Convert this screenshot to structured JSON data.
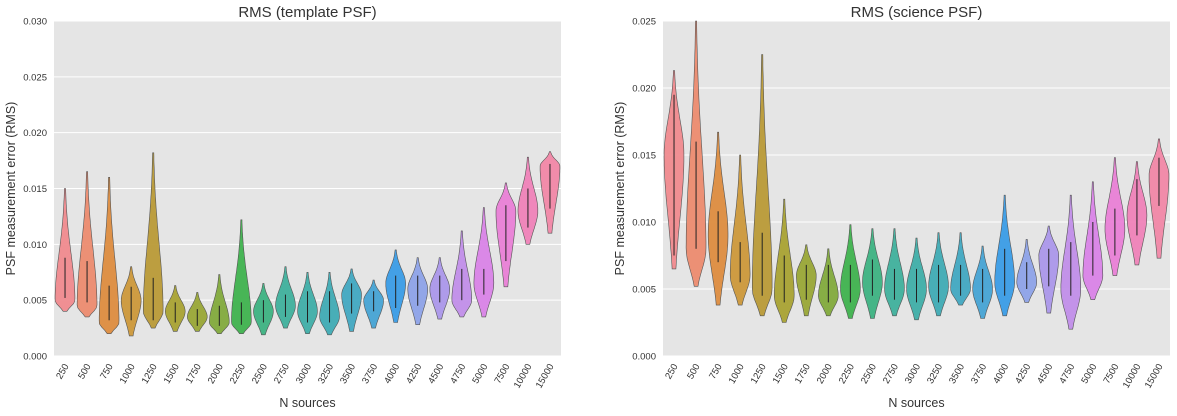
{
  "chart_data": [
    {
      "type": "violin",
      "title": "RMS (template PSF)",
      "xlabel": "N sources",
      "ylabel": "PSF measurement error (RMS)",
      "ylim": [
        0,
        0.03
      ],
      "yticks": [
        "0.000",
        "0.005",
        "0.010",
        "0.015",
        "0.020",
        "0.025",
        "0.030"
      ],
      "grid": true,
      "categories": [
        "250",
        "500",
        "750",
        "1000",
        "1250",
        "1500",
        "1750",
        "2000",
        "2250",
        "2500",
        "2750",
        "3000",
        "3250",
        "3500",
        "3750",
        "4000",
        "4250",
        "4500",
        "4750",
        "5000",
        "7500",
        "10000",
        "15000"
      ],
      "violins": [
        {
          "min": 0.004,
          "max": 0.015,
          "q1": 0.0052,
          "q3": 0.0088,
          "median": 0.0065,
          "peak": 0.005
        },
        {
          "min": 0.0035,
          "max": 0.0165,
          "q1": 0.0048,
          "q3": 0.0085,
          "median": 0.0062,
          "peak": 0.0045
        },
        {
          "min": 0.002,
          "max": 0.016,
          "q1": 0.0032,
          "q3": 0.0063,
          "median": 0.0045,
          "peak": 0.003
        },
        {
          "min": 0.0018,
          "max": 0.008,
          "q1": 0.0032,
          "q3": 0.0062,
          "median": 0.0045,
          "peak": 0.005
        },
        {
          "min": 0.0025,
          "max": 0.0182,
          "q1": 0.0032,
          "q3": 0.007,
          "median": 0.0048,
          "peak": 0.004
        },
        {
          "min": 0.0022,
          "max": 0.0063,
          "q1": 0.003,
          "q3": 0.0048,
          "median": 0.0038,
          "peak": 0.004
        },
        {
          "min": 0.0022,
          "max": 0.0057,
          "q1": 0.0027,
          "q3": 0.0042,
          "median": 0.0034,
          "peak": 0.0035
        },
        {
          "min": 0.002,
          "max": 0.0073,
          "q1": 0.0027,
          "q3": 0.0045,
          "median": 0.0035,
          "peak": 0.003
        },
        {
          "min": 0.002,
          "max": 0.0122,
          "q1": 0.0028,
          "q3": 0.0048,
          "median": 0.0037,
          "peak": 0.003
        },
        {
          "min": 0.0019,
          "max": 0.0065,
          "q1": 0.003,
          "q3": 0.005,
          "median": 0.004,
          "peak": 0.004
        },
        {
          "min": 0.0025,
          "max": 0.008,
          "q1": 0.0035,
          "q3": 0.0055,
          "median": 0.0045,
          "peak": 0.0045
        },
        {
          "min": 0.002,
          "max": 0.0075,
          "q1": 0.003,
          "q3": 0.0058,
          "median": 0.0043,
          "peak": 0.004
        },
        {
          "min": 0.0019,
          "max": 0.0075,
          "q1": 0.003,
          "q3": 0.0058,
          "median": 0.0043,
          "peak": 0.0035
        },
        {
          "min": 0.0022,
          "max": 0.0078,
          "q1": 0.0038,
          "q3": 0.0065,
          "median": 0.005,
          "peak": 0.0055
        },
        {
          "min": 0.0025,
          "max": 0.0068,
          "q1": 0.004,
          "q3": 0.0058,
          "median": 0.0048,
          "peak": 0.005
        },
        {
          "min": 0.003,
          "max": 0.0095,
          "q1": 0.0043,
          "q3": 0.0072,
          "median": 0.0055,
          "peak": 0.0065
        },
        {
          "min": 0.0028,
          "max": 0.0088,
          "q1": 0.0045,
          "q3": 0.0072,
          "median": 0.0058,
          "peak": 0.006
        },
        {
          "min": 0.0033,
          "max": 0.0088,
          "q1": 0.0048,
          "q3": 0.0072,
          "median": 0.006,
          "peak": 0.006
        },
        {
          "min": 0.0035,
          "max": 0.0112,
          "q1": 0.005,
          "q3": 0.0078,
          "median": 0.0062,
          "peak": 0.005
        },
        {
          "min": 0.0035,
          "max": 0.0133,
          "q1": 0.0055,
          "q3": 0.0078,
          "median": 0.0065,
          "peak": 0.0065
        },
        {
          "min": 0.0062,
          "max": 0.0155,
          "q1": 0.0085,
          "q3": 0.0135,
          "median": 0.011,
          "peak": 0.013
        },
        {
          "min": 0.01,
          "max": 0.0178,
          "q1": 0.0115,
          "q3": 0.015,
          "median": 0.0132,
          "peak": 0.013
        },
        {
          "min": 0.011,
          "max": 0.0183,
          "q1": 0.0132,
          "q3": 0.0172,
          "median": 0.015,
          "peak": 0.017
        }
      ]
    },
    {
      "type": "violin",
      "title": "RMS (science PSF)",
      "xlabel": "N sources",
      "ylabel": "PSF measurement error (RMS)",
      "ylim": [
        0,
        0.025
      ],
      "yticks": [
        "0.000",
        "0.005",
        "0.010",
        "0.015",
        "0.020",
        "0.025"
      ],
      "grid": true,
      "categories": [
        "250",
        "500",
        "750",
        "1000",
        "1250",
        "1500",
        "1750",
        "2000",
        "2250",
        "2500",
        "2750",
        "3000",
        "3250",
        "3500",
        "3750",
        "4000",
        "4250",
        "4500",
        "4750",
        "5000",
        "7500",
        "10000",
        "15000"
      ],
      "violins": [
        {
          "min": 0.0065,
          "max": 0.0213,
          "q1": 0.0075,
          "q3": 0.0195,
          "median": 0.013,
          "peak": 0.015
        },
        {
          "min": 0.0052,
          "max": 0.025,
          "q1": 0.008,
          "q3": 0.016,
          "median": 0.011,
          "peak": 0.008
        },
        {
          "min": 0.0038,
          "max": 0.0167,
          "q1": 0.007,
          "q3": 0.0108,
          "median": 0.009,
          "peak": 0.009
        },
        {
          "min": 0.0038,
          "max": 0.015,
          "q1": 0.0055,
          "q3": 0.0085,
          "median": 0.0068,
          "peak": 0.006
        },
        {
          "min": 0.003,
          "max": 0.0225,
          "q1": 0.0045,
          "q3": 0.0092,
          "median": 0.0065,
          "peak": 0.005
        },
        {
          "min": 0.0025,
          "max": 0.0117,
          "q1": 0.004,
          "q3": 0.0075,
          "median": 0.0055,
          "peak": 0.0045
        },
        {
          "min": 0.003,
          "max": 0.0083,
          "q1": 0.0042,
          "q3": 0.0068,
          "median": 0.0055,
          "peak": 0.006
        },
        {
          "min": 0.003,
          "max": 0.008,
          "q1": 0.004,
          "q3": 0.0068,
          "median": 0.0052,
          "peak": 0.0045
        },
        {
          "min": 0.0028,
          "max": 0.0098,
          "q1": 0.004,
          "q3": 0.0068,
          "median": 0.0052,
          "peak": 0.005
        },
        {
          "min": 0.0028,
          "max": 0.0095,
          "q1": 0.0045,
          "q3": 0.0072,
          "median": 0.0058,
          "peak": 0.0055
        },
        {
          "min": 0.003,
          "max": 0.0095,
          "q1": 0.0042,
          "q3": 0.0065,
          "median": 0.0052,
          "peak": 0.005
        },
        {
          "min": 0.0027,
          "max": 0.0088,
          "q1": 0.004,
          "q3": 0.0065,
          "median": 0.005,
          "peak": 0.005
        },
        {
          "min": 0.003,
          "max": 0.0092,
          "q1": 0.004,
          "q3": 0.0068,
          "median": 0.0052,
          "peak": 0.0052
        },
        {
          "min": 0.0038,
          "max": 0.0092,
          "q1": 0.0045,
          "q3": 0.0068,
          "median": 0.0055,
          "peak": 0.005
        },
        {
          "min": 0.0028,
          "max": 0.0082,
          "q1": 0.004,
          "q3": 0.0065,
          "median": 0.0052,
          "peak": 0.005
        },
        {
          "min": 0.003,
          "max": 0.012,
          "q1": 0.0045,
          "q3": 0.008,
          "median": 0.006,
          "peak": 0.0055
        },
        {
          "min": 0.004,
          "max": 0.0087,
          "q1": 0.005,
          "q3": 0.007,
          "median": 0.0058,
          "peak": 0.0055
        },
        {
          "min": 0.0032,
          "max": 0.0097,
          "q1": 0.0052,
          "q3": 0.008,
          "median": 0.0065,
          "peak": 0.0075
        },
        {
          "min": 0.002,
          "max": 0.012,
          "q1": 0.0045,
          "q3": 0.0085,
          "median": 0.0062,
          "peak": 0.005
        },
        {
          "min": 0.0042,
          "max": 0.013,
          "q1": 0.006,
          "q3": 0.01,
          "median": 0.0078,
          "peak": 0.006
        },
        {
          "min": 0.006,
          "max": 0.0148,
          "q1": 0.0075,
          "q3": 0.011,
          "median": 0.0092,
          "peak": 0.0095
        },
        {
          "min": 0.0068,
          "max": 0.0145,
          "q1": 0.009,
          "q3": 0.0132,
          "median": 0.011,
          "peak": 0.0105
        },
        {
          "min": 0.0073,
          "max": 0.0162,
          "q1": 0.0112,
          "q3": 0.0148,
          "median": 0.013,
          "peak": 0.0135
        }
      ]
    }
  ],
  "colors": {
    "background": "#ffffff",
    "axes_face": "#e5e5e5",
    "grid": "#ffffff",
    "inner_line": "#222222",
    "palette": [
      "#f08a8e",
      "#ec8b6f",
      "#dd8c3f",
      "#cc983a",
      "#b99a37",
      "#a9a233",
      "#99a636",
      "#82aa3c",
      "#3fb24e",
      "#3db282",
      "#3fb09c",
      "#3faea8",
      "#3fabb4",
      "#41a8c1",
      "#46a3d4",
      "#3a9ce6",
      "#8da2e8",
      "#ab97ea",
      "#c18ee9",
      "#d983e7",
      "#e97fd6",
      "#ef82b8",
      "#f187a6"
    ]
  }
}
